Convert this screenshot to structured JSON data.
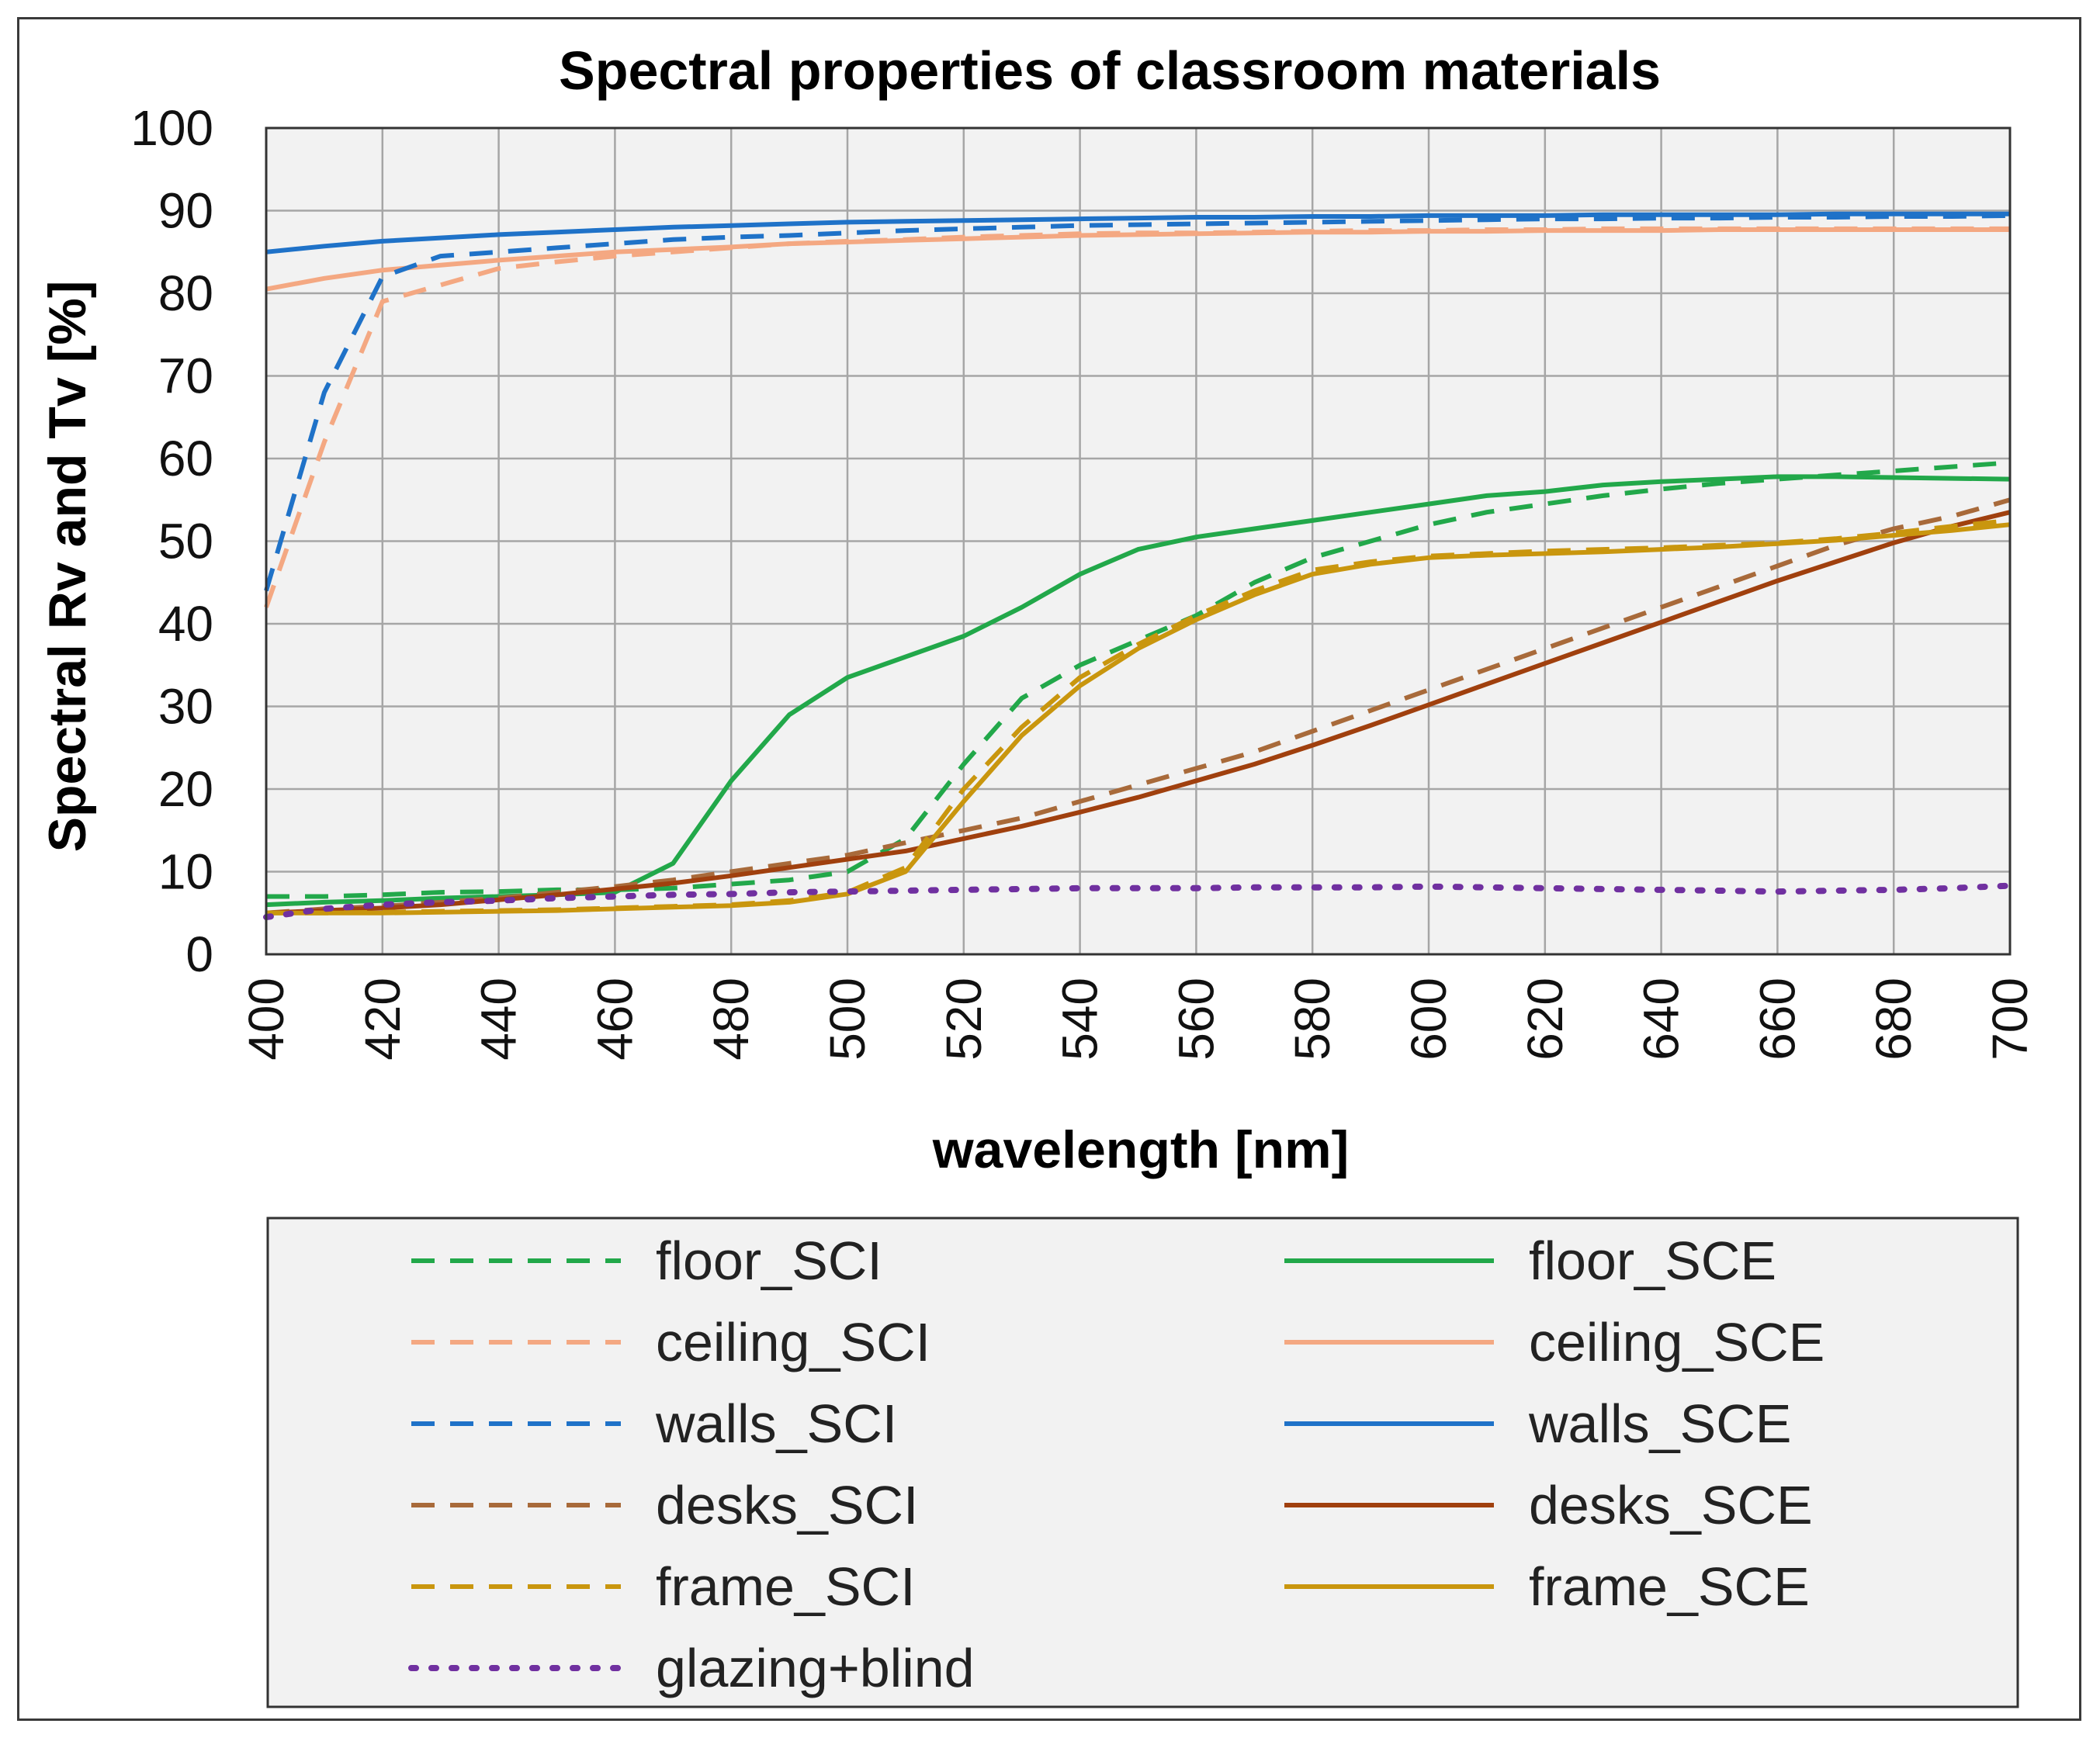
{
  "chart_data": {
    "type": "line",
    "title": "Spectral properties of classroom materials",
    "xlabel": "wavelength  [nm]",
    "ylabel": "Spectral Rv and Tv [%]",
    "xlim": [
      400,
      700
    ],
    "ylim": [
      0,
      100
    ],
    "x_ticks": [
      400,
      420,
      440,
      460,
      480,
      500,
      520,
      540,
      560,
      580,
      600,
      620,
      640,
      660,
      680,
      700
    ],
    "y_ticks": [
      0,
      10,
      20,
      30,
      40,
      50,
      60,
      70,
      80,
      90,
      100
    ],
    "grid": true,
    "legend_position": "bottom",
    "x": [
      400,
      410,
      420,
      430,
      440,
      450,
      460,
      470,
      480,
      490,
      500,
      510,
      520,
      530,
      540,
      550,
      560,
      570,
      580,
      590,
      600,
      610,
      620,
      630,
      640,
      650,
      660,
      670,
      680,
      690,
      700
    ],
    "series": [
      {
        "name": "floor_SCI",
        "color": "#22a84a",
        "style": "dashed",
        "values": [
          7,
          7,
          7.2,
          7.5,
          7.6,
          7.8,
          7.8,
          8,
          8.5,
          9,
          10,
          14,
          23,
          31,
          35,
          38,
          41,
          45,
          48,
          50,
          52,
          53.5,
          54.5,
          55.5,
          56.3,
          57,
          57.5,
          58,
          58.5,
          59,
          59.5
        ]
      },
      {
        "name": "floor_SCE",
        "color": "#22a84a",
        "style": "solid",
        "values": [
          6,
          6.3,
          6.5,
          6.8,
          7,
          7.2,
          7.5,
          11,
          21,
          29,
          33.5,
          36,
          38.5,
          42,
          46,
          49,
          50.5,
          51.5,
          52.5,
          53.5,
          54.5,
          55.5,
          56,
          56.8,
          57.2,
          57.5,
          57.8,
          57.8,
          57.7,
          57.6,
          57.5
        ]
      },
      {
        "name": "ceiling_SCI",
        "color": "#f4a882",
        "style": "dashed",
        "values": [
          42,
          62,
          79,
          81,
          83,
          83.8,
          84.5,
          85,
          85.5,
          86,
          86.3,
          86.5,
          86.8,
          87,
          87.2,
          87.3,
          87.3,
          87.4,
          87.5,
          87.6,
          87.6,
          87.7,
          87.7,
          87.8,
          87.8,
          87.8,
          87.8,
          87.8,
          87.8,
          87.8,
          87.8
        ]
      },
      {
        "name": "ceiling_SCE",
        "color": "#f4a882",
        "style": "solid",
        "values": [
          80.5,
          81.8,
          82.8,
          83.4,
          84,
          84.5,
          85,
          85.3,
          85.6,
          86,
          86.2,
          86.4,
          86.6,
          86.8,
          87,
          87.1,
          87.2,
          87.3,
          87.4,
          87.4,
          87.5,
          87.5,
          87.6,
          87.6,
          87.6,
          87.7,
          87.7,
          87.7,
          87.7,
          87.7,
          87.7
        ]
      },
      {
        "name": "walls_SCI",
        "color": "#1f72c8",
        "style": "dashed",
        "values": [
          44,
          68,
          82,
          84.5,
          85,
          85.5,
          86,
          86.5,
          86.8,
          87,
          87.3,
          87.6,
          87.8,
          88,
          88.2,
          88.3,
          88.4,
          88.5,
          88.6,
          88.7,
          88.8,
          88.9,
          89,
          89,
          89.1,
          89.1,
          89.2,
          89.2,
          89.3,
          89.3,
          89.4
        ]
      },
      {
        "name": "walls_SCE",
        "color": "#1f72c8",
        "style": "solid",
        "values": [
          85,
          85.7,
          86.3,
          86.7,
          87.1,
          87.4,
          87.7,
          88,
          88.2,
          88.4,
          88.6,
          88.7,
          88.8,
          88.9,
          89,
          89.1,
          89.2,
          89.2,
          89.3,
          89.3,
          89.4,
          89.4,
          89.4,
          89.5,
          89.5,
          89.5,
          89.5,
          89.6,
          89.6,
          89.6,
          89.6
        ]
      },
      {
        "name": "desks_SCI",
        "color": "#a86a3a",
        "style": "dashed",
        "values": [
          5,
          5.5,
          5.8,
          6.3,
          6.8,
          7.5,
          8.2,
          9,
          10,
          11,
          12,
          13.5,
          15,
          16.5,
          18.5,
          20.5,
          22.5,
          24.5,
          27,
          29.5,
          32,
          34.5,
          37,
          39.5,
          42,
          44.5,
          47,
          49.5,
          51.5,
          53,
          55
        ]
      },
      {
        "name": "desks_SCE",
        "color": "#a0400e",
        "style": "solid",
        "values": [
          5,
          5.3,
          5.6,
          6,
          6.6,
          7.2,
          7.9,
          8.6,
          9.5,
          10.5,
          11.5,
          12.5,
          14,
          15.5,
          17.2,
          19,
          21,
          23,
          25.3,
          27.7,
          30.2,
          32.7,
          35.2,
          37.7,
          40.2,
          42.7,
          45.2,
          47.5,
          49.8,
          51.8,
          53.5
        ]
      },
      {
        "name": "frame_SCI",
        "color": "#c9960e",
        "style": "dashed",
        "values": [
          5,
          5,
          5.1,
          5.2,
          5.3,
          5.4,
          5.6,
          5.8,
          6,
          6.5,
          7.5,
          10.5,
          20,
          27.5,
          33.5,
          37.5,
          41,
          44,
          46.5,
          47.5,
          48.2,
          48.5,
          48.8,
          49,
          49.2,
          49.5,
          49.8,
          50.3,
          51,
          51.8,
          52.5
        ]
      },
      {
        "name": "frame_SCE",
        "color": "#c9960e",
        "style": "solid",
        "values": [
          5,
          5,
          5,
          5.1,
          5.2,
          5.3,
          5.5,
          5.7,
          5.9,
          6.3,
          7.3,
          10,
          18.5,
          26.5,
          32.5,
          37,
          40.5,
          43.5,
          46,
          47.2,
          48,
          48.3,
          48.5,
          48.7,
          49,
          49.3,
          49.7,
          50.1,
          50.7,
          51.3,
          52
        ]
      },
      {
        "name": "glazing+blind",
        "color": "#7030a0",
        "style": "dotted",
        "values": [
          4.5,
          5.5,
          6,
          6.3,
          6.5,
          6.8,
          7,
          7.2,
          7.3,
          7.5,
          7.6,
          7.7,
          7.8,
          7.9,
          8,
          8,
          8,
          8.1,
          8.1,
          8.1,
          8.2,
          8.1,
          8,
          7.9,
          7.8,
          7.7,
          7.6,
          7.7,
          7.8,
          8,
          8.3
        ]
      }
    ]
  }
}
